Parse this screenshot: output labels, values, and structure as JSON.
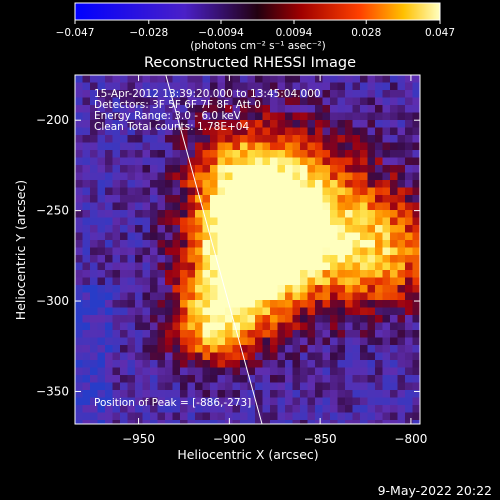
{
  "chart_data": {
    "type": "heatmap",
    "title": "Reconstructed RHESSI Image",
    "xlabel": "Heliocentric X (arcsec)",
    "ylabel": "Heliocentric Y (arcsec)",
    "xlim": [
      -985,
      -795
    ],
    "ylim": [
      -368,
      -175
    ],
    "x_ticks": [
      -950,
      -900,
      -850,
      -800
    ],
    "y_ticks": [
      -200,
      -250,
      -300,
      -350
    ],
    "x_tick_labels": [
      "−950",
      "−900",
      "−850",
      "−800"
    ],
    "y_tick_labels": [
      "−200",
      "−250",
      "−300",
      "−350"
    ],
    "colorbar": {
      "range": [
        -0.047,
        0.047
      ],
      "tick_values": [
        -0.047,
        -0.028,
        -0.0094,
        0.0094,
        0.028,
        0.047
      ],
      "tick_labels": [
        "−0.047",
        "−0.028",
        "−0.0094",
        "0.0094",
        "0.028",
        "0.047"
      ],
      "label": "(photons cm⁻² s⁻¹ asec⁻²)"
    },
    "annotations": [
      "15-Apr-2012 13:39:20.000 to 13:45:04.000",
      "Detectors: 3F 5F 6F 7F 8F, Att 0",
      "Energy Range: 3.0 - 6.0 keV",
      "Clean     Total counts: 1.78E+04"
    ],
    "peak_label": "Position of Peak = [-886,-273]",
    "peak": [
      -886,
      -273
    ],
    "limb_line": [
      [
        -935,
        -175
      ],
      [
        -882,
        -368
      ]
    ]
  },
  "footer": {
    "date": "9-May-2022 20:22"
  }
}
